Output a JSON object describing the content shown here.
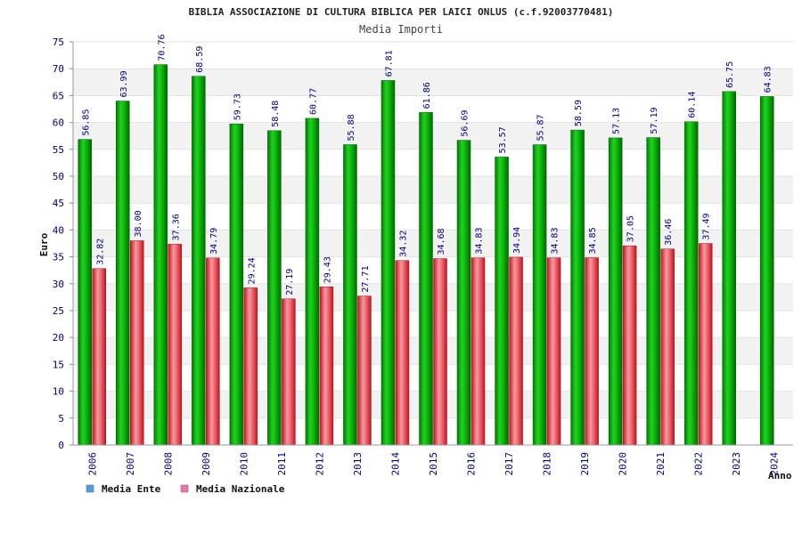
{
  "chart_data": {
    "type": "bar",
    "title": "BIBLIA ASSOCIAZIONE DI CULTURA BIBLICA PER LAICI ONLUS (c.f.92003770481)",
    "subtitle": "Media Importi",
    "xlabel": "Anno",
    "ylabel": "Euro",
    "ylim": [
      0,
      75
    ],
    "yticks": [
      0,
      5,
      10,
      15,
      20,
      25,
      30,
      35,
      40,
      45,
      50,
      55,
      60,
      65,
      70,
      75
    ],
    "grid": true,
    "legend_position": "bottom-left",
    "categories": [
      "2006",
      "2007",
      "2008",
      "2009",
      "2010",
      "2011",
      "2012",
      "2013",
      "2014",
      "2015",
      "2016",
      "2017",
      "2018",
      "2019",
      "2020",
      "2021",
      "2022",
      "2023",
      "2024"
    ],
    "series": [
      {
        "name": "Media Ente",
        "color": "#00b400",
        "values": [
          56.85,
          63.99,
          70.76,
          68.59,
          59.73,
          58.48,
          60.77,
          55.88,
          67.81,
          61.86,
          56.69,
          53.57,
          55.87,
          58.59,
          57.13,
          57.19,
          60.14,
          65.75,
          64.83
        ],
        "labels": [
          "56.85",
          "63.99",
          "70.76",
          "68.59",
          "59.73",
          "58.48",
          "60.77",
          "55.88",
          "67.81",
          "61.86",
          "56.69",
          "53.57",
          "55.87",
          "58.59",
          "57.13",
          "57.19",
          "60.14",
          "65.75",
          "64.83"
        ]
      },
      {
        "name": "Media Nazionale",
        "color": "#e8313c",
        "values": [
          32.82,
          38.0,
          37.36,
          34.79,
          29.24,
          27.19,
          29.43,
          27.71,
          34.32,
          34.68,
          34.83,
          34.94,
          34.83,
          34.85,
          37.05,
          36.46,
          37.49,
          null,
          null
        ],
        "labels": [
          "32.82",
          "38.00",
          "37.36",
          "34.79",
          "29.24",
          "27.19",
          "29.43",
          "27.71",
          "34.32",
          "34.68",
          "34.83",
          "34.94",
          "34.83",
          "34.85",
          "37.05",
          "36.46",
          "37.49",
          null,
          null
        ]
      }
    ],
    "legend": [
      {
        "label": "Media Ente",
        "color": "#5b9bd5"
      },
      {
        "label": "Media Nazionale",
        "color": "#e07bb0"
      }
    ]
  }
}
